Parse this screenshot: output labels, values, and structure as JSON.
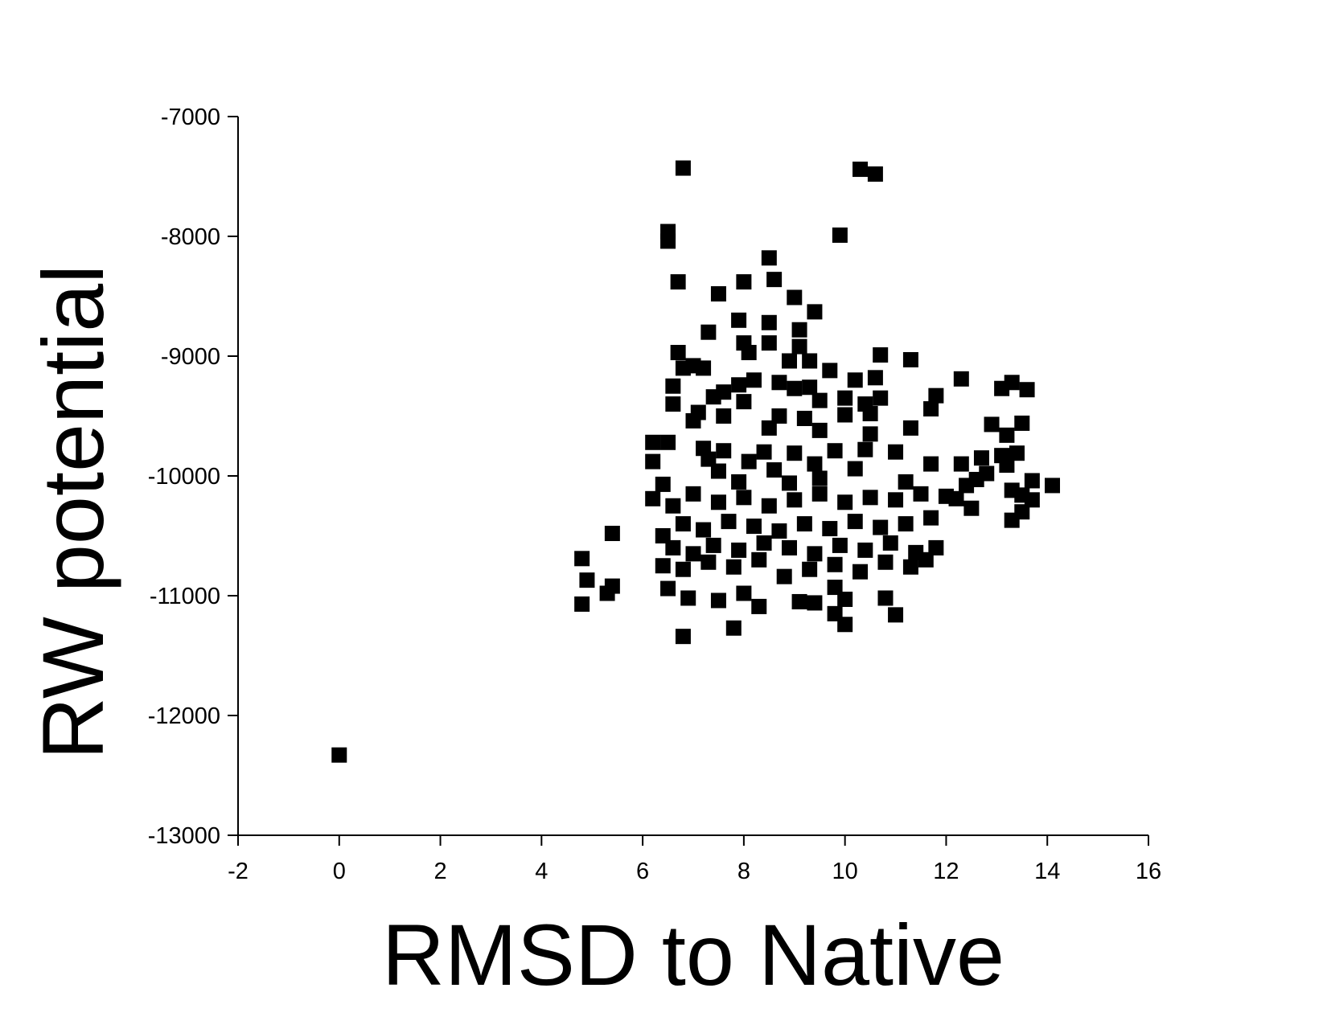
{
  "chart_data": {
    "type": "scatter",
    "x_label": "RMSD to Native",
    "y_label": "RW potential",
    "xlim": [
      -2,
      16
    ],
    "xticks": [
      -2,
      0,
      2,
      4,
      6,
      8,
      10,
      12,
      14,
      16
    ],
    "ylim": [
      -13000,
      -7000
    ],
    "yticks": [
      -13000,
      -12000,
      -11000,
      -10000,
      -9000,
      -8000,
      -7000
    ],
    "grid": false,
    "series": [
      {
        "color": "#000000",
        "x": [
          0,
          6.8,
          10.3,
          10.6,
          6.5,
          6.5,
          9.9,
          8.5,
          6.7,
          8.0,
          8.6,
          7.5,
          9.0,
          9.4,
          7.9,
          8.5,
          7.3,
          9.1,
          8.0,
          8.5,
          9.1,
          6.7,
          8.1,
          10.7,
          11.3,
          8.9,
          9.3,
          7.0,
          7.2,
          9.7,
          6.8,
          8.2,
          8.7,
          7.9,
          10.2,
          10.6,
          12.3,
          13.3,
          6.6,
          9.0,
          9.3,
          7.6,
          7.4,
          13.6,
          13.1,
          11.8,
          10.0,
          10.7,
          6.6,
          8.0,
          9.5,
          10.4,
          11.7,
          7.1,
          7.6,
          8.7,
          9.2,
          10.0,
          10.5,
          12.9,
          13.5,
          7.0,
          8.5,
          9.5,
          11.3,
          10.5,
          13.2,
          6.2,
          6.5,
          7.2,
          7.6,
          8.4,
          9.0,
          9.8,
          10.4,
          11.0,
          13.1,
          13.4,
          12.7,
          6.2,
          7.3,
          8.1,
          9.4,
          11.7,
          12.3,
          13.2,
          7.5,
          8.6,
          10.2,
          12.8,
          9.5,
          12.6,
          13.7,
          14.1,
          6.4,
          7.9,
          8.9,
          11.2,
          12.4,
          6.2,
          6.6,
          7.0,
          7.5,
          8.0,
          8.5,
          9.0,
          9.5,
          10.0,
          10.5,
          11.0,
          11.5,
          12.0,
          12.2,
          12.5,
          13.3,
          13.5,
          13.7,
          13.3,
          13.5,
          6.4,
          6.8,
          7.2,
          7.7,
          8.2,
          8.7,
          9.2,
          9.7,
          10.2,
          10.7,
          11.2,
          11.7,
          6.6,
          7.0,
          7.4,
          7.9,
          8.4,
          8.9,
          9.4,
          9.9,
          10.4,
          10.9,
          11.4,
          11.8,
          6.4,
          6.8,
          7.3,
          7.8,
          8.3,
          8.8,
          9.3,
          9.8,
          10.3,
          10.8,
          11.3,
          11.6,
          6.5,
          6.9,
          7.5,
          8.0,
          8.3,
          9.1,
          9.4,
          9.8,
          10.0,
          10.8,
          11.0,
          9.8,
          10.0,
          7.8,
          6.8,
          4.8,
          4.9,
          5.4,
          5.4,
          5.3,
          4.8
        ],
        "values": [
          -12330,
          -7430,
          -7440,
          -7480,
          -7960,
          -8040,
          -7990,
          -8180,
          -8380,
          -8380,
          -8360,
          -8480,
          -8510,
          -8630,
          -8700,
          -8720,
          -8800,
          -8780,
          -8890,
          -8890,
          -8920,
          -8970,
          -8970,
          -8990,
          -9030,
          -9040,
          -9040,
          -9080,
          -9100,
          -9120,
          -9100,
          -9200,
          -9220,
          -9240,
          -9200,
          -9180,
          -9190,
          -9220,
          -9250,
          -9270,
          -9260,
          -9300,
          -9340,
          -9280,
          -9270,
          -9330,
          -9350,
          -9350,
          -9400,
          -9380,
          -9370,
          -9400,
          -9440,
          -9470,
          -9500,
          -9500,
          -9520,
          -9490,
          -9480,
          -9570,
          -9560,
          -9540,
          -9600,
          -9620,
          -9600,
          -9650,
          -9660,
          -9720,
          -9720,
          -9770,
          -9790,
          -9800,
          -9810,
          -9790,
          -9780,
          -9800,
          -9830,
          -9810,
          -9850,
          -9880,
          -9860,
          -9880,
          -9900,
          -9900,
          -9900,
          -9910,
          -9960,
          -9950,
          -9940,
          -9980,
          -10020,
          -10030,
          -10040,
          -10080,
          -10070,
          -10050,
          -10060,
          -10050,
          -10080,
          -10190,
          -10250,
          -10150,
          -10220,
          -10180,
          -10250,
          -10200,
          -10150,
          -10220,
          -10180,
          -10200,
          -10150,
          -10170,
          -10190,
          -10270,
          -10120,
          -10160,
          -10200,
          -10370,
          -10300,
          -10500,
          -10400,
          -10450,
          -10380,
          -10420,
          -10460,
          -10400,
          -10440,
          -10380,
          -10430,
          -10400,
          -10350,
          -10600,
          -10650,
          -10580,
          -10620,
          -10560,
          -10600,
          -10650,
          -10580,
          -10620,
          -10560,
          -10640,
          -10600,
          -10750,
          -10780,
          -10720,
          -10760,
          -10700,
          -10840,
          -10780,
          -10740,
          -10800,
          -10720,
          -10760,
          -10700,
          -10940,
          -11020,
          -11040,
          -10980,
          -11090,
          -11050,
          -11060,
          -10930,
          -11030,
          -11020,
          -11160,
          -11150,
          -11240,
          -11270,
          -11340,
          -10690,
          -10870,
          -10480,
          -10920,
          -10980,
          -11070
        ]
      }
    ]
  }
}
